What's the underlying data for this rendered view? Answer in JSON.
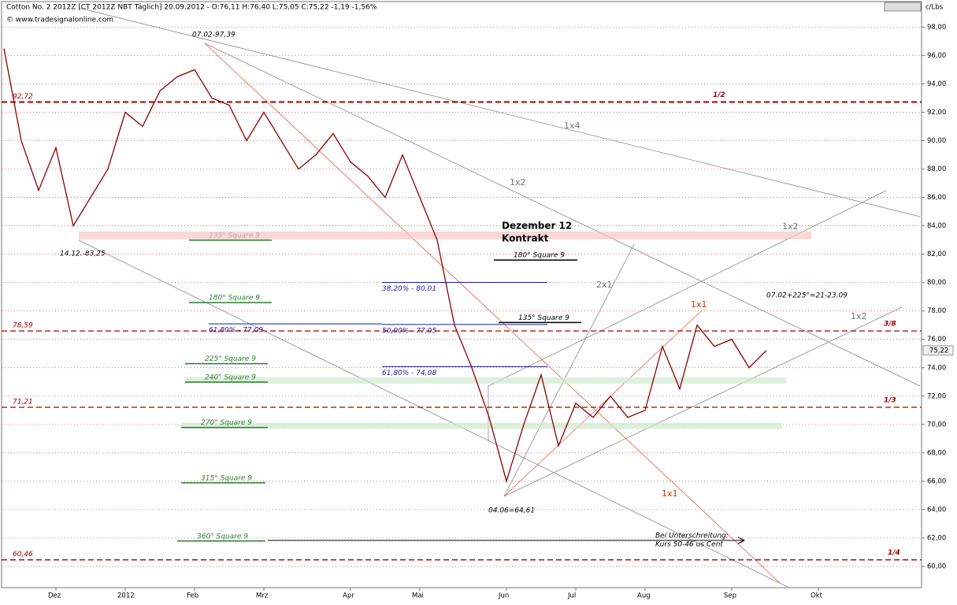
{
  "header": {
    "instrument": "Cotton No. 2 2012Z [CT 2012Z NBT Täglich] 20.09.2012 - O:76,11 H:76,40 L:75,05 C:75,22 -1,19 -1,56%",
    "source": "© www.tradesignalonline.com",
    "unit": "c/Lbs"
  },
  "chart_data": {
    "type": "line",
    "categories": [
      null,
      null,
      null,
      "Dez",
      null,
      null,
      null,
      "2012",
      null,
      null,
      null,
      "Feb",
      null,
      null,
      null,
      "Mrz",
      null,
      null,
      null,
      null,
      "Apr",
      null,
      null,
      null,
      "Mai",
      null,
      null,
      null,
      null,
      "Jun",
      null,
      null,
      null,
      "Jul",
      null,
      null,
      null,
      "Aug",
      null,
      null,
      null,
      null,
      "Sep",
      null,
      null,
      null,
      null,
      "Okt",
      null,
      null,
      null,
      null,
      null
    ],
    "series": [
      {
        "name": "Cotton No. 2 2012Z",
        "color": "#8b0000",
        "values": [
          96.5,
          90,
          86.5,
          89.5,
          84,
          86,
          88,
          92,
          91,
          93.5,
          94.5,
          95,
          93,
          92.5,
          90,
          92,
          90,
          88,
          89,
          90.5,
          88.5,
          87.5,
          86,
          89,
          86,
          83,
          77,
          74,
          70.5,
          66,
          70,
          73.5,
          68.5,
          71.5,
          70.5,
          72,
          70.5,
          71,
          75.5,
          72.5,
          77,
          75.5,
          76,
          74,
          75.22,
          null,
          null,
          null,
          null,
          null,
          null,
          null,
          null
        ]
      }
    ],
    "last_price": {
      "value": 75.22,
      "label": "75,22"
    },
    "ylim": [
      58.5,
      99.8
    ],
    "yticks": [
      {
        "value": 60,
        "label": "60,00"
      },
      {
        "value": 62,
        "label": "62,00"
      },
      {
        "value": 64,
        "label": "64,00"
      },
      {
        "value": 66,
        "label": "66,00"
      },
      {
        "value": 68,
        "label": "68,00"
      },
      {
        "value": 70,
        "label": "70,00"
      },
      {
        "value": 72,
        "label": "72,00"
      },
      {
        "value": 74,
        "label": "74,00"
      },
      {
        "value": 76,
        "label": "76,00"
      },
      {
        "value": 78,
        "label": "78,00"
      },
      {
        "value": 80,
        "label": "80,00"
      },
      {
        "value": 82,
        "label": "82,00"
      },
      {
        "value": 84,
        "label": "84,00"
      },
      {
        "value": 86,
        "label": "86,00"
      },
      {
        "value": 88,
        "label": "88,00"
      },
      {
        "value": 90,
        "label": "90,00"
      },
      {
        "value": 92,
        "label": "92,00"
      },
      {
        "value": 94,
        "label": "94,00"
      },
      {
        "value": 96,
        "label": "96,00"
      },
      {
        "value": 98,
        "label": "98,00"
      }
    ],
    "grid": true,
    "levels": [
      {
        "value": 92.72,
        "label": "92,72",
        "name": "1/2"
      },
      {
        "value": 76.59,
        "label": "76,59",
        "name": "3/8"
      },
      {
        "value": 71.21,
        "label": "71,21",
        "name": "1/3"
      },
      {
        "value": 60.46,
        "label": "60,46",
        "name": "1/4"
      }
    ],
    "square_lines": [
      {
        "text": "135° Square 9",
        "value": 83.1,
        "color": "#2e7d32"
      },
      {
        "text": "180° Square 9",
        "value": 78.7,
        "color": "#2e7d32"
      },
      {
        "text": "225° Square 9",
        "value": 74.4,
        "color": "#2e7d32"
      },
      {
        "text": "240° Square 9",
        "value": 73.1,
        "color": "#2e7d32"
      },
      {
        "text": "270° Square 9",
        "value": 69.9,
        "color": "#2e7d32"
      },
      {
        "text": "315° Square 9",
        "value": 66,
        "color": "#2e7d32"
      },
      {
        "text": "360° Square 9",
        "value": 61.9,
        "color": "#2e7d32"
      },
      {
        "text": "180° Square 9",
        "value": 81.7,
        "color": "#000000"
      },
      {
        "text": "135° Square 9",
        "value": 77.3,
        "color": "#000000"
      }
    ],
    "fib_lines": [
      {
        "text": "38,20% - 80,01",
        "value": 80.01
      },
      {
        "text": "50,00% - 77,05",
        "value": 77.05
      },
      {
        "text": "61,80% - 74,08",
        "value": 74.08
      },
      {
        "text": "61,80% - 77,09",
        "value": 77.09
      }
    ],
    "annotations": {
      "high": "07.02-97,39",
      "low1": "14.12.-83,25",
      "low2": "04.06=64,61",
      "contract": [
        "Dezember 12",
        "Kontrakt"
      ],
      "gann": [
        "1x4",
        "1x2",
        "1x2",
        "1x2",
        "2x1",
        "1x1",
        "1x1"
      ],
      "time": "07.02+225°=21-23.09",
      "note": [
        "Bei Unterschreitung:",
        "Kurs 50-46 us Cent"
      ]
    }
  }
}
